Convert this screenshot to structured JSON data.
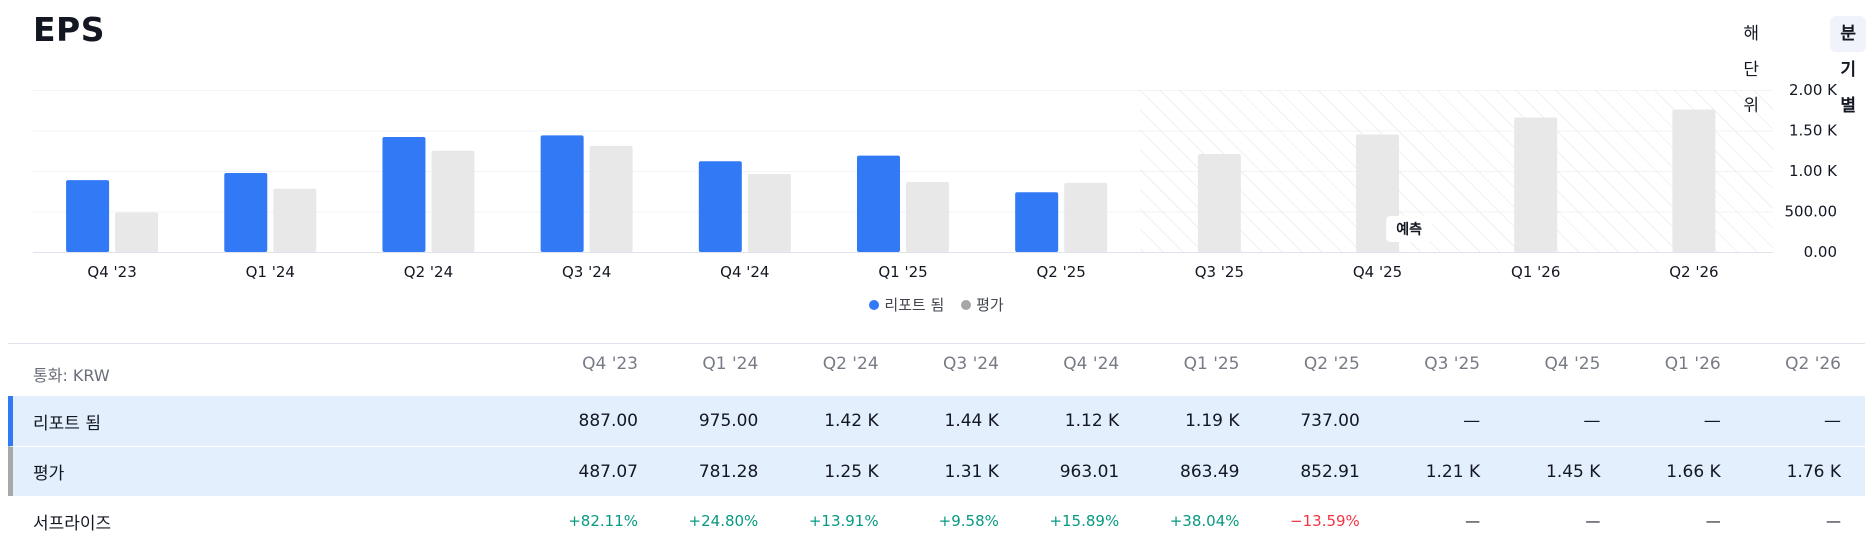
{
  "page": {
    "title": "EPS",
    "period_options": [
      "해단위",
      "분기별"
    ],
    "selected_period": "분기별"
  },
  "colors": {
    "reported": "#3179f5",
    "estimate": "#e8e8e8",
    "estimate_legend": "#a6a6a6",
    "positive": "#089981",
    "negative": "#f23645"
  },
  "chart_data": {
    "type": "bar",
    "title": "EPS",
    "categories": [
      "Q4 '23",
      "Q1 '24",
      "Q2 '24",
      "Q3 '24",
      "Q4 '24",
      "Q1 '25",
      "Q2 '25",
      "Q3 '25",
      "Q4 '25",
      "Q1 '26",
      "Q2 '26"
    ],
    "series": [
      {
        "name": "리포트 됨",
        "values": [
          887.0,
          975.0,
          1420,
          1440,
          1120,
          1190,
          737.0,
          null,
          null,
          null,
          null
        ]
      },
      {
        "name": "평가",
        "values": [
          487.07,
          781.28,
          1250,
          1310,
          963.01,
          863.49,
          852.91,
          1210,
          1450,
          1660,
          1760
        ]
      }
    ],
    "ylim": [
      0,
      2000
    ],
    "yticks": [
      0,
      500,
      1000,
      1500,
      2000
    ],
    "ytick_labels": [
      "0.00",
      "500.00",
      "1.00 K",
      "1.50 K",
      "2.00 K"
    ],
    "forecast_start_index": 7,
    "forecast_label": "예측",
    "legend": [
      "리포트 됨",
      "평가"
    ],
    "legend_position": "bottom-center",
    "grid": true
  },
  "table": {
    "currency_label": "통화: KRW",
    "columns": [
      "Q4 '23",
      "Q1 '24",
      "Q2 '24",
      "Q3 '24",
      "Q4 '24",
      "Q1 '25",
      "Q2 '25",
      "Q3 '25",
      "Q4 '25",
      "Q1 '26",
      "Q2 '26"
    ],
    "rows": [
      {
        "label": "리포트 됨",
        "values": [
          "887.00",
          "975.00",
          "1.42 K",
          "1.44 K",
          "1.12 K",
          "1.19 K",
          "737.00",
          "—",
          "—",
          "—",
          "—"
        ]
      },
      {
        "label": "평가",
        "values": [
          "487.07",
          "781.28",
          "1.25 K",
          "1.31 K",
          "963.01",
          "863.49",
          "852.91",
          "1.21 K",
          "1.45 K",
          "1.66 K",
          "1.76 K"
        ]
      },
      {
        "label": "서프라이즈",
        "values": [
          "+82.11%",
          "+24.80%",
          "+13.91%",
          "+9.58%",
          "+15.89%",
          "+38.04%",
          "−13.59%",
          "—",
          "—",
          "—",
          "—"
        ]
      }
    ]
  }
}
